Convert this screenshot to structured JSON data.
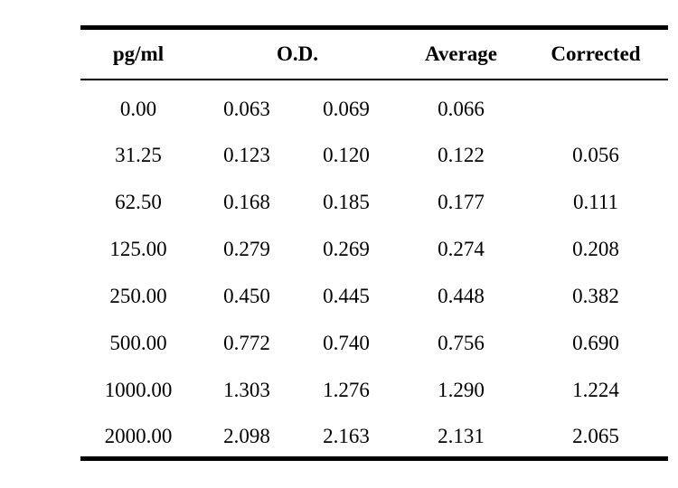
{
  "table": {
    "headers": {
      "concentration": "pg/ml",
      "od": "O.D.",
      "average": "Average",
      "corrected": "Corrected"
    },
    "rows": [
      {
        "conc": "0.00",
        "od1": "0.063",
        "od2": "0.069",
        "avg": "0.066",
        "corr": ""
      },
      {
        "conc": "31.25",
        "od1": "0.123",
        "od2": "0.120",
        "avg": "0.122",
        "corr": "0.056"
      },
      {
        "conc": "62.50",
        "od1": "0.168",
        "od2": "0.185",
        "avg": "0.177",
        "corr": "0.111"
      },
      {
        "conc": "125.00",
        "od1": "0.279",
        "od2": "0.269",
        "avg": "0.274",
        "corr": "0.208"
      },
      {
        "conc": "250.00",
        "od1": "0.450",
        "od2": "0.445",
        "avg": "0.448",
        "corr": "0.382"
      },
      {
        "conc": "500.00",
        "od1": "0.772",
        "od2": "0.740",
        "avg": "0.756",
        "corr": "0.690"
      },
      {
        "conc": "1000.00",
        "od1": "1.303",
        "od2": "1.276",
        "avg": "1.290",
        "corr": "1.224"
      },
      {
        "conc": "2000.00",
        "od1": "2.098",
        "od2": "2.163",
        "avg": "2.131",
        "corr": "2.065"
      }
    ]
  }
}
